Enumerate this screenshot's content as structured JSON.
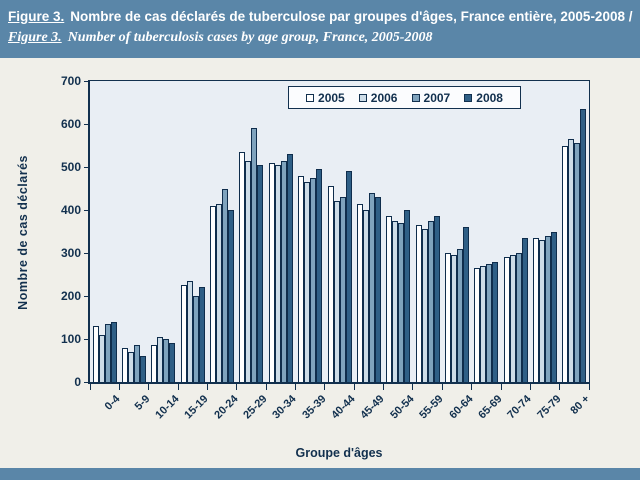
{
  "header": {
    "title_fr_label": "Figure 3.",
    "title_fr": "Nombre de cas déclarés de tuberculose par groupes d'âges, France entière, 2005-2008 /",
    "title_en_label": "Figure 3.",
    "title_en": "Number of tuberculosis cases by age group, France, 2005-2008"
  },
  "chart_data": {
    "type": "bar",
    "title": "",
    "xlabel": "Groupe d'âges",
    "ylabel": "Nombre de cas déclarés",
    "ylim": [
      0,
      700
    ],
    "yticks": [
      0,
      100,
      200,
      300,
      400,
      500,
      600,
      700
    ],
    "grid": false,
    "legend_position": "top-center",
    "categories": [
      "0-4",
      "5-9",
      "10-14",
      "15-19",
      "20-24",
      "25-29",
      "30-34",
      "35-39",
      "40-44",
      "45-49",
      "50-54",
      "55-59",
      "60-64",
      "65-69",
      "70-74",
      "75-79",
      "80 +"
    ],
    "series": [
      {
        "name": "2005",
        "color": "#ffffff",
        "values": [
          130,
          80,
          85,
          225,
          410,
          535,
          510,
          480,
          455,
          415,
          385,
          365,
          300,
          265,
          290,
          335,
          550
        ]
      },
      {
        "name": "2006",
        "color": "#cddce7",
        "values": [
          110,
          70,
          105,
          235,
          415,
          515,
          505,
          465,
          420,
          400,
          375,
          355,
          295,
          270,
          295,
          330,
          565
        ]
      },
      {
        "name": "2007",
        "color": "#7fa3bd",
        "values": [
          135,
          85,
          100,
          200,
          450,
          590,
          515,
          475,
          430,
          440,
          370,
          375,
          310,
          275,
          300,
          340,
          555
        ]
      },
      {
        "name": "2008",
        "color": "#2f5f86",
        "values": [
          140,
          60,
          90,
          220,
          400,
          505,
          530,
          495,
          490,
          430,
          400,
          385,
          360,
          280,
          335,
          350,
          635
        ]
      }
    ]
  },
  "colors": {
    "header_bg": "#5a86a8",
    "footer_bg": "#5a86a8",
    "body_bg": "#f0efe9",
    "plot_bg": "#e9eef4",
    "axis_text": "#12304e",
    "legend_bg": "#fbfcfe"
  }
}
